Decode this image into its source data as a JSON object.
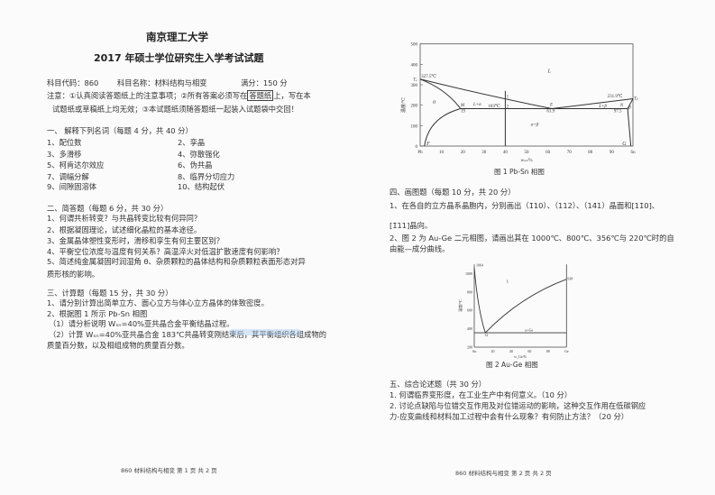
{
  "page1": {
    "university": "南京理工大学",
    "exam_title": "2017 年硕士学位研究生入学考试试题",
    "subject_code": "科目代码：860",
    "subject_name": "科目名称：材料结构与相变",
    "full_score": "满分：150 分",
    "notice_a": "注意：①认真阅读答题纸上的注意事项；②所有答案必须写在",
    "notice_box": "答题纸",
    "notice_b": "上，写在本",
    "notice_c": "试题纸或草稿纸上均无效；③本试题纸须随答题纸一起装入试题袋中交回！",
    "section1": {
      "heading": "一、 解释下列名词（每题 4 分，共 40 分）",
      "items": [
        "1、配位数",
        "2、孪晶",
        "3、多滑移",
        "4、弥散强化",
        "5、柯肯达尔效应",
        "6、伪共晶",
        "7、调幅分解",
        "8、临界分切应力",
        "9、间隙固溶体",
        "10、结构起伏"
      ]
    },
    "section2": {
      "heading": "二、简答题（每题 6 分，共 30 分）",
      "items": [
        "1、何谓共析转变？与共晶转变比较有何异同？",
        "2、根据凝固理论，试述细化晶粒的基本途径。",
        "3、金属晶体塑性变形时，滑移和孪生有何主要区别？",
        "4、平衡空位浓度与温度有何关系？高温淬火对低温扩散速度有何影响？",
        "5、简述纯金属凝固时润湿角 θ、杂质颗粒的晶体结构和杂质颗粒表面形态对异",
        "质形核的影响。"
      ]
    },
    "section3": {
      "heading": "三、计算题（每题 15 分，共 30 分）",
      "items": [
        "1、请分别计算出简单立方、面心立方与体心立方晶体的体致密度。",
        "2、根据图 1 所示 Pb-Sn 相图",
        "（1）请分析说明 Wₛₙ=40%亚共晶合金平衡结晶过程。",
        "（2）计算 Wₛₙ=40%亚共晶合金 183℃共晶转变刚结束后，其平衡组织各组成物的",
        "质量百分数，以及相组成物的质量百分数。"
      ]
    },
    "footer": "860  材料结构与相变   第 1 页 共 2 页"
  },
  "page2": {
    "figure1": {
      "caption": "图 1  Pb-Sn 相图",
      "ylabel": "温度/℃",
      "xlabel": "wₛₙ/%",
      "y_ticks": [
        "0",
        "100",
        "200",
        "300",
        "400",
        "500"
      ],
      "x_ticks": [
        "Pb",
        "10",
        "20",
        "30",
        "40",
        "50",
        "60",
        "70",
        "80",
        "90",
        "Sn"
      ],
      "labels": {
        "ta": "Tₐ",
        "ta_temp": "327.5℃",
        "tb": "Tᵦ",
        "tb_temp": "231.9℃",
        "L": "L",
        "alpha": "α",
        "l_alpha": "L+α",
        "t183": "183℃",
        "p1": "1",
        "p2": "2",
        "M": "M",
        "m19": "19",
        "E": "E",
        "e619": "61.9",
        "l_beta": "L+β",
        "N": "N",
        "n975": "97.5",
        "beta": "β",
        "ab": "α+β",
        "F": "F",
        "G": "G"
      }
    },
    "section4": {
      "heading": "四、画图题（每题 10 分，共 20 分）",
      "q1a": "1、在各自的立方晶系晶胞内，分别画出（1̄10）、（112）、（14̄1）晶面和[11̄0]、",
      "q1b": "[1̄11]晶向。",
      "q2a": "2、图 2 为 Au-Ge 二元相图，请画出其在 1000℃、800℃、356℃与 220℃时的自",
      "q2b": "由能—成分曲线。"
    },
    "figure2": {
      "caption": "图 2   Au-Ge 相图",
      "ylabel": "温度/℃",
      "xlabel": "w_Ge/%",
      "y_ticks": [
        "200",
        "400",
        "600",
        "800",
        "1000"
      ],
      "x_ticks": [
        "Au",
        "20",
        "40",
        "60",
        "80",
        "Ge"
      ],
      "labels": {
        "au_melt": "1064",
        "ge_melt": "938",
        "L": "L",
        "eut": "12",
        "region": "α+Ge"
      }
    },
    "section5": {
      "heading": "五、综合论述题（共 30 分）",
      "q1": "1. 何谓临界变形度，在工业生产中有何意义。（10 分）",
      "q2a": "2. 讨论点缺陷与位错交互作用及对位错运动的影响，这种交互作用在低碳钢应",
      "q2b": "力-应变曲线和材料加工过程中会有什么现象？有何防止方法？（20 分）"
    },
    "footer": "860  材料结构与相变   第 2 页 共 2 页"
  },
  "colors": {
    "ink": "#333333",
    "highlight": "#9fc8ef"
  }
}
